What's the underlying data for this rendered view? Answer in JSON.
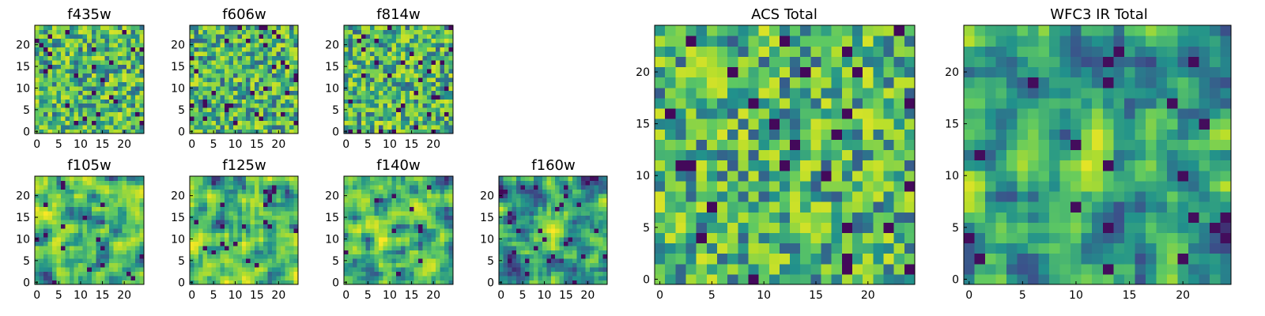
{
  "figure_title": "",
  "colormap": "viridis",
  "colormap_stops": [
    "#440154",
    "#3b528b",
    "#21918c",
    "#5ec962",
    "#b5de2b",
    "#fde725"
  ],
  "chart_data": [
    {
      "type": "heatmap",
      "title": "f435w",
      "grid_size": 25,
      "x_ticks": [
        0,
        5,
        10,
        15,
        20
      ],
      "y_ticks": [
        0,
        5,
        10,
        15,
        20
      ],
      "xlim": [
        0,
        24
      ],
      "ylim": [
        0,
        24
      ],
      "pattern": "noise"
    },
    {
      "type": "heatmap",
      "title": "f606w",
      "grid_size": 25,
      "x_ticks": [
        0,
        5,
        10,
        15,
        20
      ],
      "y_ticks": [
        0,
        5,
        10,
        15,
        20
      ],
      "xlim": [
        0,
        24
      ],
      "ylim": [
        0,
        24
      ],
      "pattern": "noise"
    },
    {
      "type": "heatmap",
      "title": "f814w",
      "grid_size": 25,
      "x_ticks": [
        0,
        5,
        10,
        15,
        20
      ],
      "y_ticks": [
        0,
        5,
        10,
        15,
        20
      ],
      "xlim": [
        0,
        24
      ],
      "ylim": [
        0,
        24
      ],
      "pattern": "noise"
    },
    {
      "type": "heatmap",
      "title": "f105w",
      "grid_size": 25,
      "x_ticks": [
        0,
        5,
        10,
        15,
        20
      ],
      "y_ticks": [
        0,
        5,
        10,
        15,
        20
      ],
      "xlim": [
        0,
        24
      ],
      "ylim": [
        0,
        24
      ],
      "pattern": "smooth"
    },
    {
      "type": "heatmap",
      "title": "f125w",
      "grid_size": 25,
      "x_ticks": [
        0,
        5,
        10,
        15,
        20
      ],
      "y_ticks": [
        0,
        5,
        10,
        15,
        20
      ],
      "xlim": [
        0,
        24
      ],
      "ylim": [
        0,
        24
      ],
      "pattern": "smooth"
    },
    {
      "type": "heatmap",
      "title": "f140w",
      "grid_size": 25,
      "x_ticks": [
        0,
        5,
        10,
        15,
        20
      ],
      "y_ticks": [
        0,
        5,
        10,
        15,
        20
      ],
      "xlim": [
        0,
        24
      ],
      "ylim": [
        0,
        24
      ],
      "pattern": "smooth"
    },
    {
      "type": "heatmap",
      "title": "f160w",
      "grid_size": 25,
      "x_ticks": [
        0,
        5,
        10,
        15,
        20
      ],
      "y_ticks": [
        0,
        5,
        10,
        15,
        20
      ],
      "xlim": [
        0,
        24
      ],
      "ylim": [
        0,
        24
      ],
      "pattern": "source"
    },
    {
      "type": "heatmap",
      "title": "ACS Total",
      "grid_size": 25,
      "x_ticks": [
        0,
        5,
        10,
        15,
        20
      ],
      "y_ticks": [
        0,
        5,
        10,
        15,
        20
      ],
      "xlim": [
        0,
        24
      ],
      "ylim": [
        0,
        24
      ],
      "pattern": "noise"
    },
    {
      "type": "heatmap",
      "title": "WFC3 IR Total",
      "grid_size": 25,
      "x_ticks": [
        0,
        5,
        10,
        15,
        20
      ],
      "y_ticks": [
        0,
        5,
        10,
        15,
        20
      ],
      "xlim": [
        0,
        24
      ],
      "ylim": [
        0,
        24
      ],
      "pattern": "source"
    }
  ]
}
